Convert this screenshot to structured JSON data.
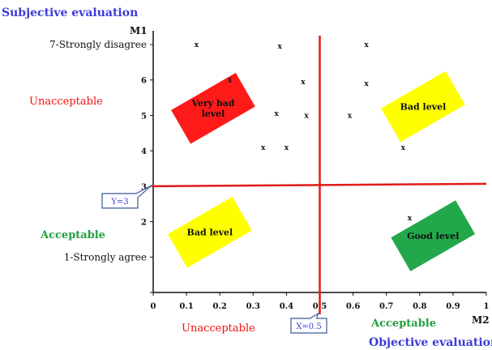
{
  "chart_data": {
    "type": "scatter",
    "title": "",
    "y_axis_title": "Subjective evaluation",
    "x_axis_title": "Objective evaluation",
    "y_axis_name": "M1",
    "x_axis_name": "M2",
    "xlim": [
      0,
      1
    ],
    "ylim": [
      0,
      7
    ],
    "x_ticks": [
      "0",
      "0.1",
      "0.2",
      "0.3",
      "0.4",
      "0.5",
      "0.6",
      "0.7",
      "0.8",
      "0.9",
      "1"
    ],
    "y_ticks": [
      {
        "value": 1,
        "label": "1-Strongly agree"
      },
      {
        "value": 2,
        "label": "2"
      },
      {
        "value": 3,
        "label": "3"
      },
      {
        "value": 4,
        "label": "4"
      },
      {
        "value": 5,
        "label": "5"
      },
      {
        "value": 6,
        "label": "6"
      },
      {
        "value": 7,
        "label": "7-Strongly disagree"
      }
    ],
    "marker": "x",
    "points": [
      {
        "x": 0.13,
        "y": 7.0
      },
      {
        "x": 0.38,
        "y": 6.95
      },
      {
        "x": 0.64,
        "y": 7.0
      },
      {
        "x": 0.23,
        "y": 6.0
      },
      {
        "x": 0.45,
        "y": 5.95
      },
      {
        "x": 0.64,
        "y": 5.9
      },
      {
        "x": 0.37,
        "y": 5.05
      },
      {
        "x": 0.46,
        "y": 5.0
      },
      {
        "x": 0.59,
        "y": 5.0
      },
      {
        "x": 0.33,
        "y": 4.1
      },
      {
        "x": 0.4,
        "y": 4.1
      },
      {
        "x": 0.75,
        "y": 4.1
      },
      {
        "x": 0.77,
        "y": 2.1
      }
    ],
    "threshold_x": {
      "value": 0.5,
      "label": "X=0.5",
      "color": "#e01a1a"
    },
    "threshold_y": {
      "value": 3,
      "label": "Y=3",
      "color": "#e01a1a"
    },
    "zones": [
      {
        "label_lines": [
          "Very bad",
          "level"
        ],
        "color": "#ff1a1a",
        "x": 0.18,
        "y": 5.2
      },
      {
        "label_lines": [
          "Bad level"
        ],
        "color": "#ffff00",
        "x": 0.81,
        "y": 5.25
      },
      {
        "label_lines": [
          "Bad level"
        ],
        "color": "#ffff00",
        "x": 0.17,
        "y": 1.7
      },
      {
        "label_lines": [
          "Good level"
        ],
        "color": "#22a84a",
        "x": 0.84,
        "y": 1.6
      }
    ],
    "side_labels": {
      "y_top": {
        "text": "Unacceptable",
        "color": "#e01a1a"
      },
      "y_bottom": {
        "text": "Acceptable",
        "color": "#22a040"
      },
      "x_left": {
        "text": "Unacceptable",
        "color": "#e01a1a"
      },
      "x_right": {
        "text": "Acceptable",
        "color": "#22a040"
      }
    }
  }
}
